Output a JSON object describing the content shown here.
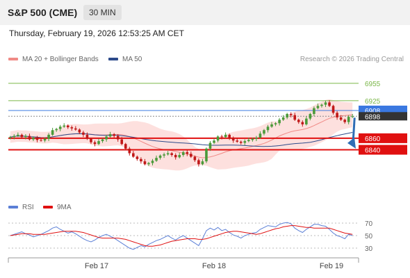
{
  "header": {
    "title": "S&P 500 (CME)",
    "timeframe": "30 MIN"
  },
  "datetime": "Thursday, February 19, 2026 12:53:25 AM CET",
  "legend": {
    "bollinger": {
      "label": "MA 20 + Bollinger Bands",
      "color": "#f08a86"
    },
    "ma50": {
      "label": "MA 50",
      "color": "#2d4a8a"
    }
  },
  "credit": "Research © 2026 Trading Central",
  "rsi_legend": {
    "rsi": {
      "label": "RSI",
      "color": "#5b7fd6"
    },
    "ma9": {
      "label": "9MA",
      "color": "#e01010"
    }
  },
  "colors": {
    "up": "#4a9a3a",
    "down": "#c01818",
    "resistance": "#7ab648",
    "pivot": "#3a78e0",
    "support": "#e01010",
    "last": "#333333",
    "arrow": "#2f6db5"
  },
  "chart_data": {
    "type": "candlestick",
    "x_labels": [
      "Feb 17",
      "Feb 18",
      "Feb 19"
    ],
    "ylim": [
      6760,
      6985
    ],
    "levels": [
      {
        "value": 6955,
        "label": "6955",
        "kind": "resistance"
      },
      {
        "value": 6925,
        "label": "6925",
        "kind": "resistance"
      },
      {
        "value": 6908,
        "label": "6908",
        "kind": "pivot"
      },
      {
        "value": 6860,
        "label": "6860",
        "kind": "support"
      },
      {
        "value": 6840,
        "label": "6840",
        "kind": "support"
      }
    ],
    "last_price": {
      "value": 6898,
      "label": "6898"
    },
    "close": [
      6862,
      6864,
      6866,
      6862,
      6864,
      6858,
      6861,
      6857,
      6856,
      6859,
      6866,
      6874,
      6876,
      6880,
      6882,
      6879,
      6877,
      6875,
      6870,
      6866,
      6859,
      6853,
      6850,
      6855,
      6858,
      6863,
      6867,
      6864,
      6858,
      6850,
      6842,
      6834,
      6828,
      6824,
      6820,
      6815,
      6817,
      6821,
      6826,
      6830,
      6832,
      6834,
      6831,
      6827,
      6831,
      6836,
      6833,
      6828,
      6822,
      6815,
      6820,
      6842,
      6852,
      6856,
      6863,
      6862,
      6866,
      6860,
      6856,
      6854,
      6852,
      6855,
      6857,
      6859,
      6861,
      6868,
      6874,
      6880,
      6884,
      6886,
      6892,
      6896,
      6902,
      6900,
      6892,
      6888,
      6884,
      6894,
      6902,
      6912,
      6916,
      6918,
      6922,
      6916,
      6904,
      6896,
      6892,
      6888,
      6897,
      6898
    ],
    "rsi": {
      "ticks": [
        70,
        50,
        30
      ],
      "ylim": [
        20,
        80
      ],
      "rsi_values": [
        50,
        52,
        54,
        56,
        53,
        51,
        48,
        50,
        52,
        55,
        58,
        62,
        64,
        60,
        57,
        54,
        56,
        53,
        49,
        45,
        42,
        40,
        43,
        47,
        50,
        52,
        49,
        46,
        42,
        38,
        34,
        30,
        28,
        31,
        34,
        32,
        36,
        39,
        42,
        44,
        47,
        50,
        46,
        43,
        47,
        50,
        46,
        42,
        38,
        34,
        45,
        58,
        62,
        59,
        63,
        58,
        60,
        55,
        51,
        49,
        46,
        50,
        52,
        54,
        55,
        60,
        63,
        66,
        65,
        64,
        68,
        70,
        71,
        69,
        62,
        58,
        55,
        60,
        64,
        68,
        68,
        66,
        65,
        60,
        54,
        50,
        48,
        45,
        52,
        50
      ],
      "ma9_values": [
        50,
        51,
        52,
        53,
        53,
        53,
        52,
        52,
        52,
        52,
        53,
        54,
        55,
        56,
        57,
        57,
        57,
        57,
        56,
        55,
        53,
        51,
        49,
        47,
        46,
        46,
        46,
        46,
        46,
        45,
        44,
        42,
        40,
        38,
        36,
        34,
        33,
        33,
        34,
        35,
        37,
        39,
        41,
        42,
        43,
        44,
        45,
        45,
        45,
        44,
        44,
        45,
        47,
        49,
        51,
        53,
        55,
        56,
        57,
        57,
        56,
        55,
        54,
        53,
        52,
        53,
        55,
        57,
        59,
        61,
        62,
        64,
        65,
        66,
        66,
        65,
        64,
        63,
        63,
        62,
        62,
        62,
        62,
        62,
        60,
        58,
        56,
        54,
        53,
        52
      ]
    }
  }
}
